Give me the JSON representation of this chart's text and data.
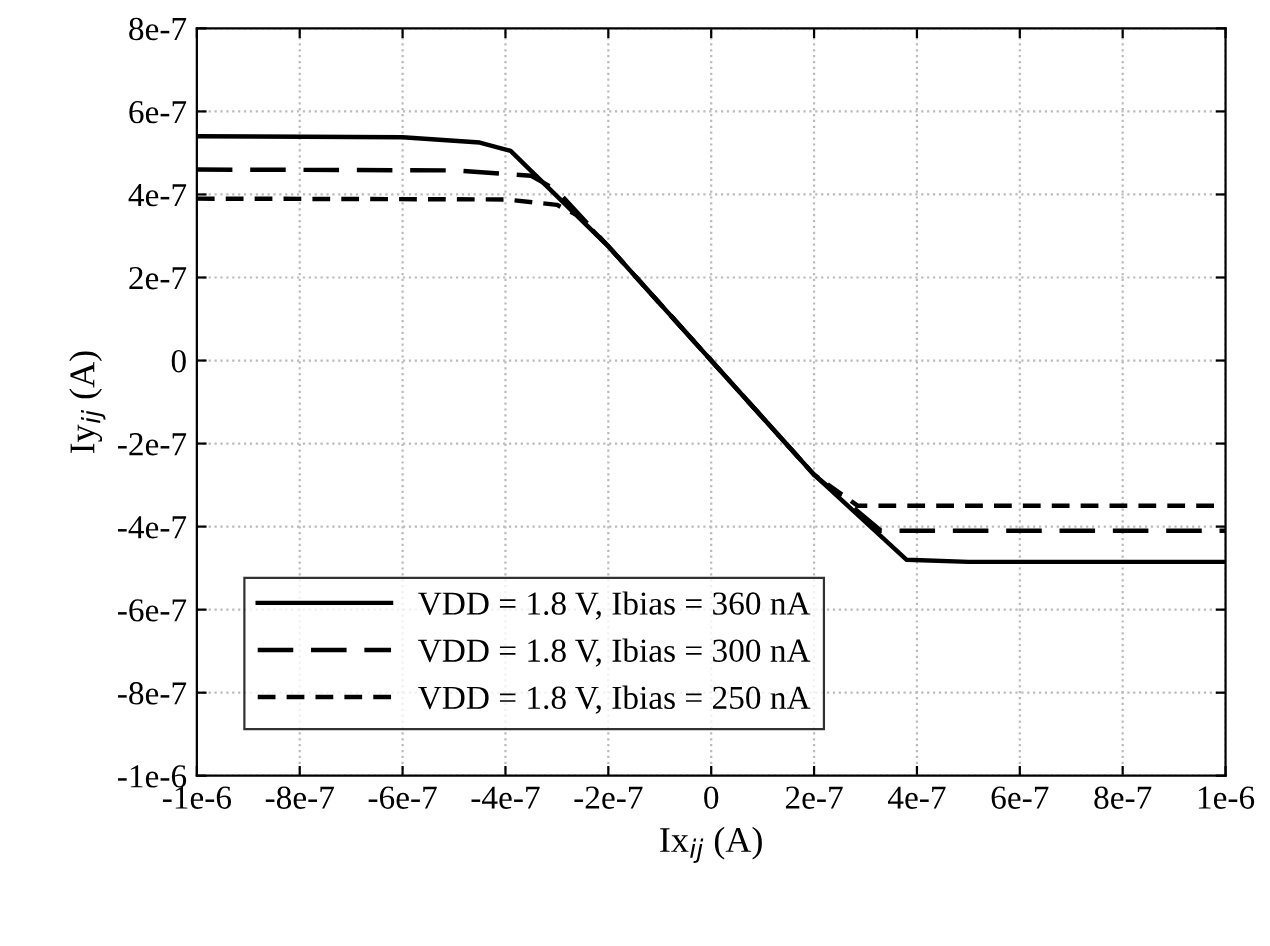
{
  "chart_data": {
    "type": "line",
    "xlabel": "Ix$_{ij}$ (A)",
    "ylabel": "Iy$_{ij}$ (A)",
    "xlim": [
      -1e-06,
      1e-06
    ],
    "xticks": [
      {
        "value": -1e-06,
        "label": "-1e-6"
      },
      {
        "value": -8e-07,
        "label": "-8e-7"
      },
      {
        "value": -6e-07,
        "label": "-6e-7"
      },
      {
        "value": -4e-07,
        "label": "-4e-7"
      },
      {
        "value": -2e-07,
        "label": "-2e-7"
      },
      0,
      {
        "value": 2e-07,
        "label": "2e-7"
      },
      {
        "value": 4e-07,
        "label": "4e-7"
      },
      {
        "value": 6e-07,
        "label": "6e-7"
      },
      {
        "value": 8e-07,
        "label": "8e-7"
      },
      {
        "value": 1e-06,
        "label": "1e-6"
      }
    ],
    "ylim": [
      -1e-06,
      8e-07
    ],
    "yticks": [
      {
        "value": -1e-06,
        "label": "-1e-6"
      },
      {
        "value": -8e-07,
        "label": "-8e-7"
      },
      {
        "value": -6e-07,
        "label": "-6e-7"
      },
      {
        "value": -4e-07,
        "label": "-4e-7"
      },
      {
        "value": -2e-07,
        "label": "-2e-7"
      },
      0,
      {
        "value": 2e-07,
        "label": "2e-7"
      },
      {
        "value": 4e-07,
        "label": "4e-7"
      },
      {
        "value": 6e-07,
        "label": "6e-7"
      },
      {
        "value": 8e-07,
        "label": "8e-7"
      }
    ],
    "grid": true,
    "legend": "bottom left",
    "series": [
      {
        "name": "VDD = 1.8 V, Ibias = 360 nA",
        "color": "#000000",
        "line_style": "solid",
        "x": [
          -1e-06,
          -6e-07,
          -4.5e-07,
          -3.9e-07,
          -2e-07,
          0,
          2e-07,
          3.8e-07,
          5e-07,
          1e-06
        ],
        "values": [
          5.4e-07,
          5.38e-07,
          5.25e-07,
          5.05e-07,
          2.75e-07,
          0,
          -2.75e-07,
          -4.8e-07,
          -4.85e-07,
          -4.85e-07
        ]
      },
      {
        "name": "VDD = 1.8 V, Ibias = 300 nA",
        "color": "#000000",
        "line_style": "dashed",
        "x": [
          -1e-06,
          -5e-07,
          -3.5e-07,
          -3e-07,
          -2e-07,
          0,
          2e-07,
          3.3e-07,
          1e-06
        ],
        "values": [
          4.6e-07,
          4.58e-07,
          4.45e-07,
          4.1e-07,
          2.75e-07,
          0,
          -2.75e-07,
          -4.1e-07,
          -4.1e-07
        ]
      },
      {
        "name": "VDD = 1.8 V, Ibias = 250 nA",
        "color": "#000000",
        "line_style": "dashed",
        "x": [
          -1e-06,
          -4e-07,
          -3e-07,
          -2.6e-07,
          -2e-07,
          0,
          2e-07,
          2.85e-07,
          1e-06
        ],
        "values": [
          3.9e-07,
          3.88e-07,
          3.75e-07,
          3.5e-07,
          2.75e-07,
          0,
          -2.75e-07,
          -3.5e-07,
          -3.5e-07
        ]
      }
    ]
  }
}
